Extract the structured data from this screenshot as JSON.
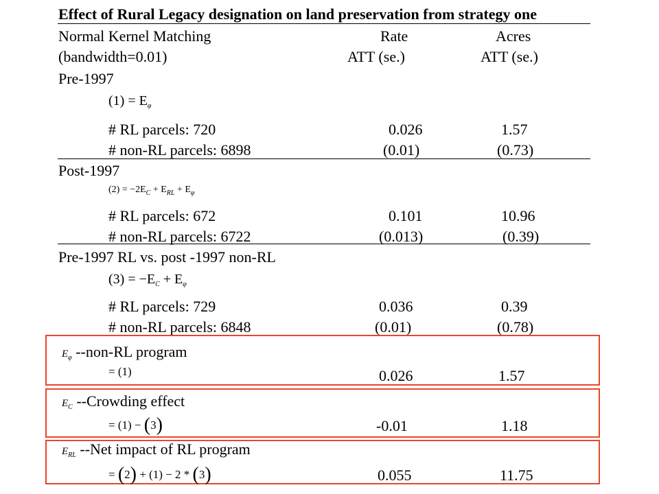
{
  "title": "Effect of Rural Legacy designation on land preservation from strategy one",
  "header": {
    "method_line1": "Normal Kernel Matching",
    "method_line2": "(bandwidth=0.01)",
    "col_rate": "Rate",
    "col_acres": "Acres",
    "col_rate_sub": "ATT  (se.)",
    "col_acres_sub": "ATT  (se.)"
  },
  "sections": [
    {
      "label": "Pre-1997",
      "formula": "(1) = E",
      "formula_sub": "φ",
      "rl_parcels": "# RL parcels: 720",
      "nonrl_parcels": "# non-RL parcels: 6898",
      "rate_att": "0.026",
      "rate_se": "(0.01)",
      "acres_att": "1.57",
      "acres_se": "(0.73)"
    },
    {
      "label": "Post-1997",
      "formula_a": "(2) = −2E",
      "formula_sub_a": "C",
      "formula_b": " + E",
      "formula_sub_b": "RL",
      "formula_c": " + E",
      "formula_sub_c": "φ",
      "rl_parcels": "# RL parcels: 672",
      "nonrl_parcels": "# non-RL parcels: 6722",
      "rate_att": "0.101",
      "rate_se": "(0.013)",
      "acres_att": "10.96",
      "acres_se": "(0.39)"
    },
    {
      "label": "Pre-1997 RL vs. post -1997 non-RL",
      "formula_a": "(3) = −E",
      "formula_sub_a": "C",
      "formula_b": " + E",
      "formula_sub_b": "φ",
      "rl_parcels": "# RL parcels: 729",
      "nonrl_parcels": "# non-RL parcels: 6848",
      "rate_att": "0.036",
      "rate_se": "(0.01)",
      "acres_att": "0.39",
      "acres_se": "(0.78)"
    }
  ],
  "effects": [
    {
      "symbol": "E",
      "symbol_sub": "φ",
      "label": "--non-RL program",
      "formula": "= (1)",
      "rate": "0.026",
      "acres": "1.57"
    },
    {
      "symbol": "E",
      "symbol_sub": "C",
      "label": "--Crowding effect",
      "formula_a": "= (1) − ",
      "paren_open": "(",
      "paren_inner": "3",
      "paren_close": ")",
      "rate": "-0.01",
      "acres": "1.18"
    },
    {
      "symbol": "E",
      "symbol_sub": "RL",
      "label": "--Net impact of RL program",
      "formula_a": "= ",
      "paren1_open": "(",
      "paren1_inner": "2",
      "paren1_close": ")",
      "formula_b": " + (1) − 2 * ",
      "paren2_open": "(",
      "paren2_inner": "3",
      "paren2_close": ")",
      "rate": "0.055",
      "acres": "11.75"
    }
  ],
  "colors": {
    "highlight_box": "#e8462a",
    "text": "#000000"
  }
}
